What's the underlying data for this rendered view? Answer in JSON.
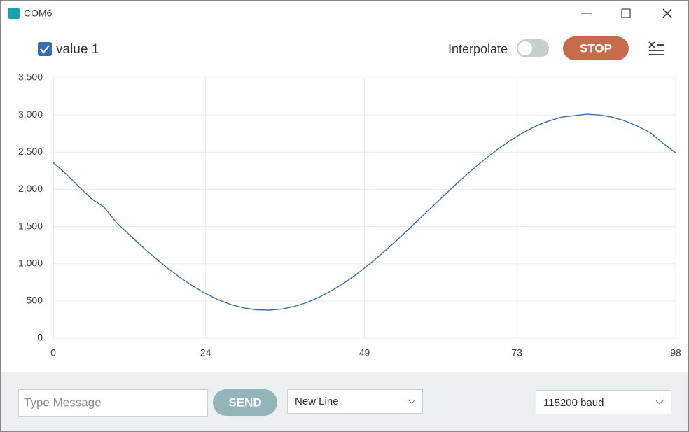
{
  "window": {
    "title": "COM6"
  },
  "toolbar": {
    "interpolate_label": "Interpolate",
    "stop_button": "STOP"
  },
  "chart_data": {
    "type": "line",
    "x": [
      0,
      2,
      4,
      6,
      8,
      10,
      12,
      14,
      16,
      18,
      20,
      22,
      24,
      26,
      28,
      30,
      32,
      34,
      36,
      38,
      40,
      42,
      44,
      46,
      48,
      50,
      52,
      54,
      56,
      58,
      60,
      62,
      64,
      66,
      68,
      70,
      72,
      74,
      76,
      78,
      80,
      82,
      84,
      86,
      88,
      90,
      92,
      94,
      96,
      98
    ],
    "series": [
      {
        "name": "value 1",
        "color": "#3d6ea8",
        "values": [
          2360,
          2210,
          2040,
          1876,
          1760,
          1550,
          1388,
          1231,
          1082,
          941,
          813,
          698,
          599,
          516,
          451,
          406,
          381,
          376,
          391,
          426,
          481,
          555,
          646,
          753,
          875,
          1010,
          1155,
          1309,
          1468,
          1631,
          1795,
          1956,
          2115,
          2267,
          2409,
          2541,
          2658,
          2764,
          2851,
          2919,
          2970,
          2990,
          3010,
          2999,
          2970,
          2920,
          2850,
          2763,
          2620,
          2490
        ]
      }
    ],
    "xlim": [
      0,
      98
    ],
    "ylim": [
      0,
      3500
    ],
    "xticks": [
      0,
      24,
      49,
      73,
      98
    ],
    "yticks": [
      0,
      500,
      {
        "value": 1000,
        "label": "1,000"
      },
      {
        "value": 1500,
        "label": "1,500"
      },
      {
        "value": 2000,
        "label": "2,000"
      },
      {
        "value": 2500,
        "label": "2,500"
      },
      {
        "value": 3000,
        "label": "3,000"
      },
      {
        "value": 3500,
        "label": "3,500"
      }
    ],
    "grid": true
  },
  "footer": {
    "message_placeholder": "Type Message",
    "send_button": "SEND",
    "line_ending": "New Line",
    "baud_rate": "115200 baud"
  }
}
